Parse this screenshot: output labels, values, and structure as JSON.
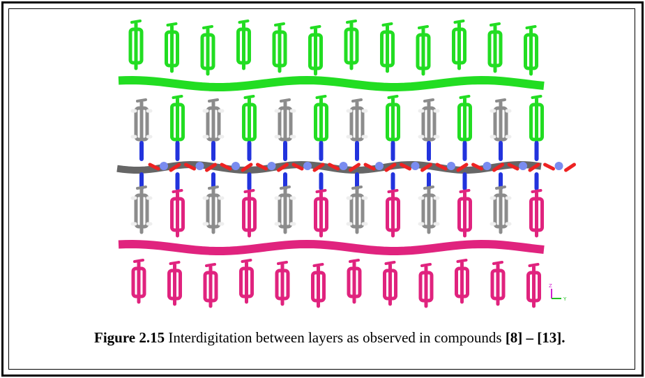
{
  "figure": {
    "axis_labels": {
      "z": "Z",
      "y": "Y"
    },
    "caption": {
      "label": "Figure 2.15",
      "text": " Interdigitation between layers as observed in compounds ",
      "refs": "[8] – [13]."
    }
  }
}
